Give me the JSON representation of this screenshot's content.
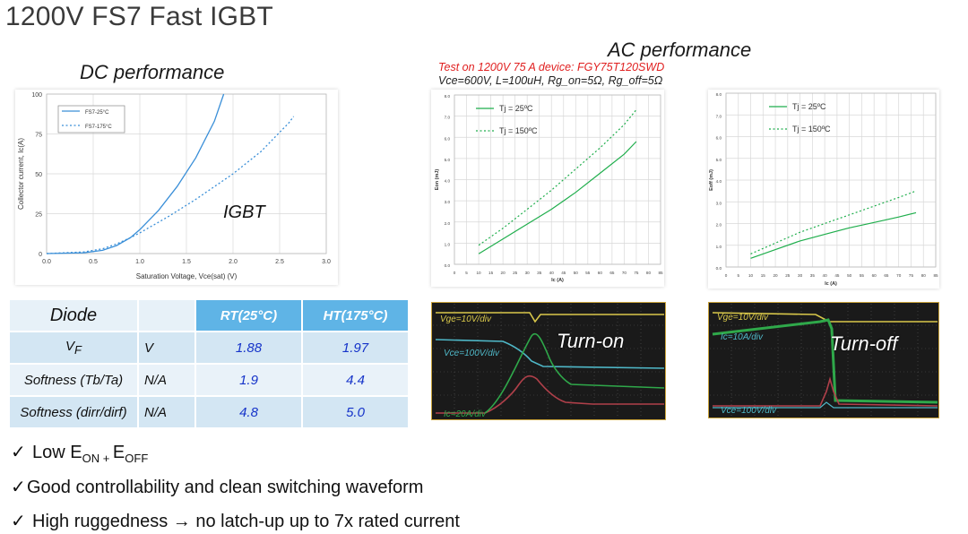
{
  "slide": {
    "title": "1200V FS7 Fast IGBT",
    "dc_title": "DC performance",
    "ac_title": "AC performance",
    "test_note": "Test on 1200V 75 A device: FGY75T120SWD",
    "conditions": "Vce=600V, L=100uH, Rg_on=5Ω, Rg_off=5Ω"
  },
  "chart_data": [
    {
      "type": "line",
      "title": "",
      "label": "IGBT",
      "xlabel": "Saturation Voltage, Vce(sat) (V)",
      "ylabel": "Collector current, Ic(A)",
      "xlim": [
        0,
        3
      ],
      "ylim": [
        0,
        100
      ],
      "xticks": [
        "0.0",
        "0.5",
        "1.0",
        "1.5",
        "2.0",
        "2.5",
        "3.0"
      ],
      "yticks": [
        "0",
        "25",
        "50",
        "75",
        "100"
      ],
      "legend_position": "top-left",
      "grid": true,
      "series": [
        {
          "name": "FS7-25°C",
          "style": "solid",
          "color": "#3a8fd8",
          "x": [
            0,
            0.4,
            0.6,
            0.75,
            0.9,
            1.0,
            1.2,
            1.4,
            1.6,
            1.8,
            1.9
          ],
          "y": [
            0,
            0.5,
            2,
            5,
            10,
            15,
            27,
            42,
            60,
            83,
            100
          ]
        },
        {
          "name": "FS7-175°C",
          "style": "dotted",
          "color": "#3a8fd8",
          "x": [
            0,
            0.4,
            0.6,
            0.75,
            0.9,
            1.0,
            1.3,
            1.6,
            2.0,
            2.3,
            2.6,
            2.65
          ],
          "y": [
            0,
            1,
            3,
            6,
            10,
            13,
            23,
            34,
            50,
            64,
            82,
            86
          ]
        }
      ]
    },
    {
      "type": "line",
      "title": "",
      "xlabel": "Ic (A)",
      "ylabel": "Eon (mJ)",
      "xlim": [
        0,
        85
      ],
      "ylim": [
        0,
        8
      ],
      "xticks": [
        "0",
        "5",
        "10",
        "15",
        "20",
        "25",
        "30",
        "35",
        "40",
        "45",
        "50",
        "55",
        "60",
        "65",
        "70",
        "75",
        "80",
        "85"
      ],
      "yticks": [
        "0.0",
        "1.0",
        "2.0",
        "3.0",
        "4.0",
        "5.0",
        "6.0",
        "7.0",
        "8.0"
      ],
      "legend_position": "top-left",
      "grid": true,
      "series": [
        {
          "name": "Tj = 25ºC",
          "style": "solid",
          "color": "#1fae4c",
          "x": [
            10,
            20,
            30,
            40,
            50,
            60,
            70,
            75
          ],
          "y": [
            0.5,
            1.2,
            1.9,
            2.6,
            3.4,
            4.3,
            5.2,
            5.8
          ]
        },
        {
          "name": "Tj = 150ºC",
          "style": "dotted",
          "color": "#1fae4c",
          "x": [
            10,
            20,
            30,
            40,
            50,
            60,
            70,
            75
          ],
          "y": [
            0.9,
            1.7,
            2.6,
            3.5,
            4.5,
            5.5,
            6.6,
            7.3
          ]
        }
      ]
    },
    {
      "type": "line",
      "title": "",
      "xlabel": "Ic (A)",
      "ylabel": "Eoff (mJ)",
      "xlim": [
        0,
        85
      ],
      "ylim": [
        0,
        8
      ],
      "xticks": [
        "0",
        "5",
        "10",
        "15",
        "20",
        "25",
        "30",
        "35",
        "40",
        "45",
        "50",
        "55",
        "60",
        "65",
        "70",
        "75",
        "80",
        "85"
      ],
      "yticks": [
        "0.0",
        "1.0",
        "2.0",
        "3.0",
        "4.0",
        "5.0",
        "6.0",
        "7.0",
        "8.0"
      ],
      "legend_position": "top-left",
      "grid": true,
      "series": [
        {
          "name": "Tj = 25ºC",
          "style": "solid",
          "color": "#1fae4c",
          "x": [
            10,
            20,
            30,
            40,
            50,
            60,
            70,
            77
          ],
          "y": [
            0.4,
            0.8,
            1.2,
            1.5,
            1.8,
            2.05,
            2.3,
            2.5
          ]
        },
        {
          "name": "Tj = 150ºC",
          "style": "dotted",
          "color": "#1fae4c",
          "x": [
            10,
            20,
            30,
            40,
            50,
            60,
            70,
            77
          ],
          "y": [
            0.6,
            1.1,
            1.6,
            2.0,
            2.4,
            2.8,
            3.2,
            3.5
          ]
        }
      ]
    }
  ],
  "diode_table": {
    "header": [
      "Diode",
      "",
      "RT(25°C)",
      "HT(175°C)"
    ],
    "rows": [
      {
        "param": "V",
        "param_sub": "F",
        "unit": "V",
        "rt": "1.88",
        "ht": "1.97"
      },
      {
        "param": "Softness (Tb/Ta)",
        "param_sub": "",
        "unit": "N/A",
        "rt": "1.9",
        "ht": "4.4"
      },
      {
        "param": "Softness (dirr/dirf)",
        "param_sub": "",
        "unit": "N/A",
        "rt": "4.8",
        "ht": "5.0"
      }
    ]
  },
  "scope_on": {
    "label": "Turn-on",
    "ch1": "Vge=10V/div",
    "ch2": "Vce=100V/div",
    "ch3": "Ic=20A/div"
  },
  "scope_off": {
    "label": "Turn-off",
    "ch1": "Vge=10V/div",
    "ch2": "Ic=10A/div",
    "ch3": "Vce=100V/div"
  },
  "bullets": {
    "b1_pre": "Low E",
    "b1_sub1": "ON",
    "b1_mid": " + ",
    "b1_e2": "E",
    "b1_sub2": "OFF",
    "b2": "Good controllability and clean switching waveform",
    "b3_pre": "High ruggedness ",
    "b3_arrow": "→",
    "b3_post": " no latch-up up to 7x rated current",
    "check": "✓"
  },
  "colors": {
    "igbt_curve": "#3a8fd8",
    "ac_curve": "#1fae4c",
    "table_header": "#5fb4e6",
    "value_text": "#1533c9",
    "note_red": "#e02020",
    "scope_yellow": "#d9c84a",
    "scope_cyan": "#4fb8c8",
    "scope_red": "#b0404a",
    "scope_green": "#2fa84a"
  }
}
